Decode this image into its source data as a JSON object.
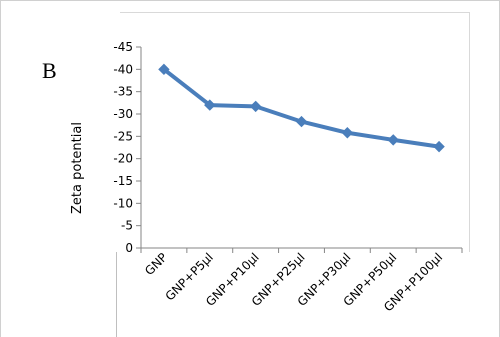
{
  "panel_label": "B",
  "chart_data": {
    "type": "line",
    "title": "",
    "xlabel": "",
    "ylabel": "Zeta potential",
    "categories": [
      "GNP",
      "GNP+P5µl",
      "GNP+P10µl",
      "GNP+P25µl",
      "GNP+P30µl",
      "GNP+P50µl",
      "GNP+P100µl"
    ],
    "series": [
      {
        "values": [
          -40,
          -32,
          -31.7,
          -28.3,
          -25.8,
          -24.2,
          -22.7
        ]
      }
    ],
    "ylim": [
      0,
      -45
    ],
    "yticks": [
      0,
      -5,
      -10,
      -15,
      -20,
      -25,
      -30,
      -35,
      -40,
      -45
    ],
    "grid": false,
    "legend": "none",
    "line_color": "#4a7ebb",
    "axis_color": "#868686"
  }
}
